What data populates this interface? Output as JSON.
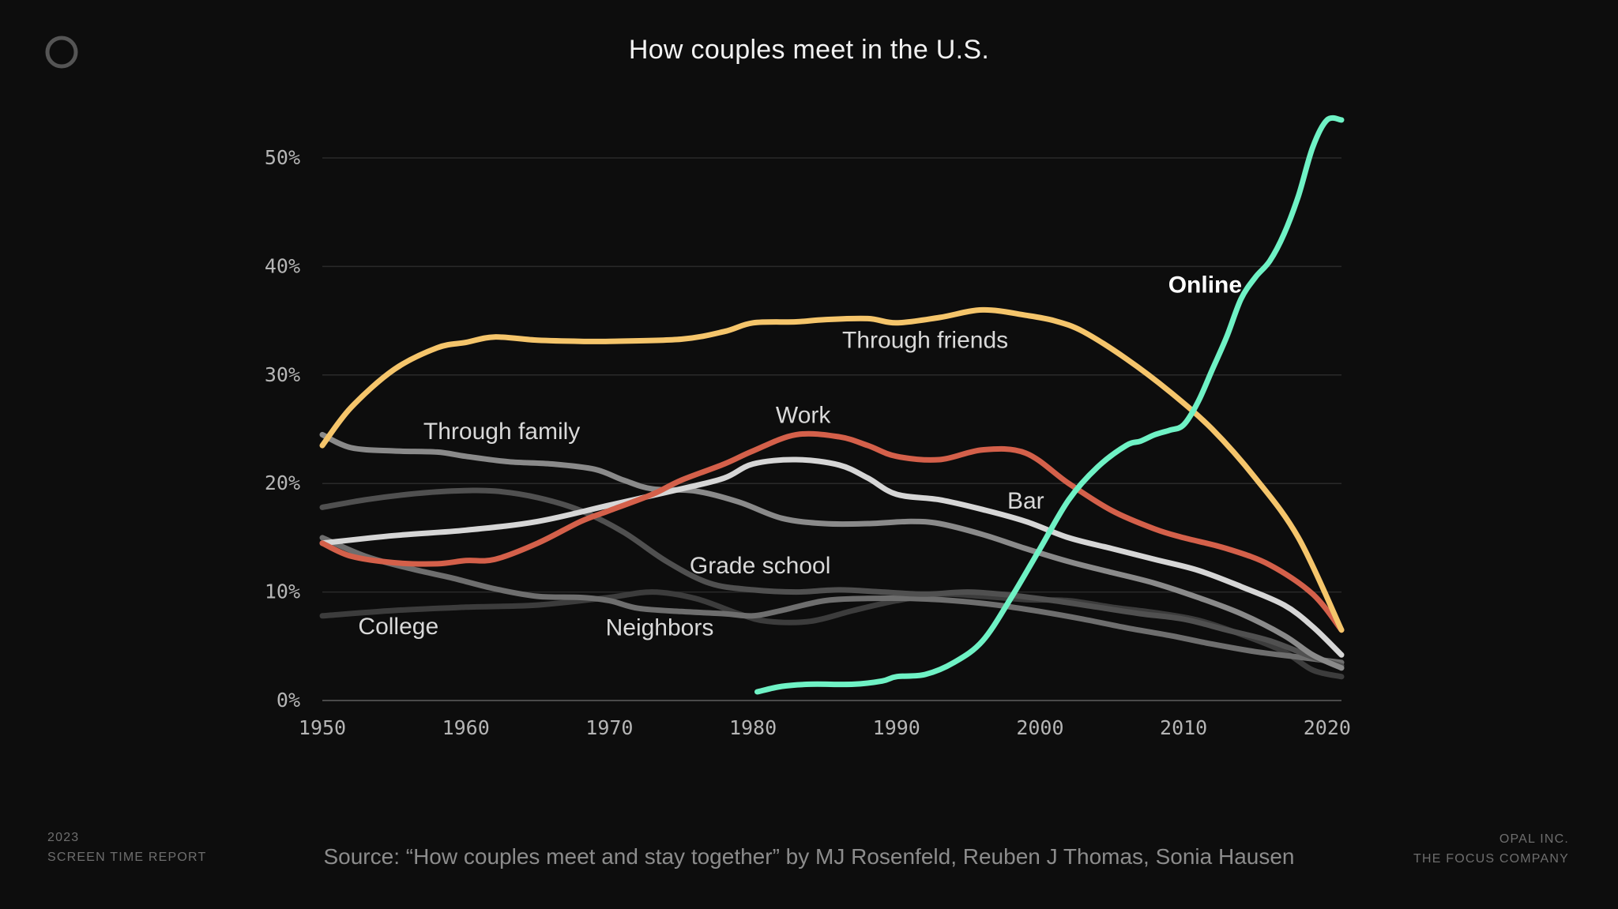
{
  "title": "How couples meet in the U.S.",
  "source": "Source: “How couples meet and stay together” by MJ Rosenfeld, Reuben J Thomas, Sonia Hausen",
  "footer_left": {
    "line1": "2023",
    "line2": "SCREEN TIME REPORT"
  },
  "footer_right": {
    "line1": "OPAL INC.",
    "line2": "THE FOCUS COMPANY"
  },
  "logo": {
    "icon": "circle-logo-icon"
  },
  "chart_data": {
    "type": "line",
    "title": "How couples meet in the U.S.",
    "xlim": [
      1950,
      2021
    ],
    "ylim": [
      0,
      50
    ],
    "x_ticks": [
      1950,
      1960,
      1970,
      1980,
      1990,
      2000,
      2010,
      2020
    ],
    "y_ticks": [
      0,
      10,
      20,
      30,
      40,
      50
    ],
    "y_tick_labels": [
      "0%",
      "10%",
      "20%",
      "30%",
      "40%",
      "50%"
    ],
    "grid": "horizontal",
    "legend": "none (direct labels)",
    "series": [
      {
        "name": "Through friends",
        "color": "#f5c56b",
        "width": 7,
        "label_pos": [
          1992,
          32.5
        ],
        "x": [
          1950,
          1952,
          1955,
          1958,
          1960,
          1962,
          1965,
          1968,
          1970,
          1975,
          1978,
          1980,
          1983,
          1985,
          1988,
          1990,
          1993,
          1996,
          1999,
          2001,
          2003,
          2006,
          2009,
          2012,
          2015,
          2018,
          2021
        ],
        "y": [
          23.5,
          27,
          30.5,
          32.5,
          33,
          33.5,
          33.2,
          33.1,
          33.1,
          33.3,
          34,
          34.8,
          34.9,
          35.1,
          35.2,
          34.8,
          35.3,
          36,
          35.5,
          35,
          34,
          31.5,
          28.5,
          25,
          20.5,
          15,
          6.5
        ]
      },
      {
        "name": "Work",
        "color": "#d4604a",
        "width": 7,
        "label_pos": [
          1983.5,
          25.6
        ],
        "x": [
          1950,
          1952,
          1955,
          1958,
          1960,
          1962,
          1965,
          1968,
          1970,
          1973,
          1975,
          1978,
          1980,
          1983,
          1986,
          1988,
          1990,
          1993,
          1996,
          1999,
          2002,
          2005,
          2008,
          2010,
          2013,
          2016,
          2019,
          2021
        ],
        "y": [
          14.5,
          13.3,
          12.7,
          12.6,
          12.9,
          13,
          14.5,
          16.5,
          17.5,
          19,
          20.3,
          21.8,
          23,
          24.5,
          24.3,
          23.5,
          22.5,
          22.2,
          23.1,
          22.8,
          20,
          17.5,
          15.8,
          15,
          14,
          12.5,
          9.8,
          6.5
        ]
      },
      {
        "name": "Bar",
        "color": "#d6d6d6",
        "width": 7,
        "label_pos": [
          1999,
          17.7
        ],
        "x": [
          1950,
          1955,
          1960,
          1965,
          1970,
          1975,
          1978,
          1980,
          1983,
          1986,
          1988,
          1990,
          1993,
          1996,
          1999,
          2002,
          2005,
          2008,
          2011,
          2014,
          2017,
          2019,
          2021
        ],
        "y": [
          14.5,
          15.2,
          15.7,
          16.5,
          18,
          19.5,
          20.5,
          21.8,
          22.2,
          21.7,
          20.5,
          19,
          18.5,
          17.6,
          16.5,
          15,
          14,
          13,
          12,
          10.5,
          8.8,
          6.8,
          4.2
        ]
      },
      {
        "name": "Through family",
        "color": "#8a8a8a",
        "width": 7,
        "label_pos": [
          1962.5,
          24.1
        ],
        "x": [
          1950,
          1952,
          1955,
          1958,
          1960,
          1963,
          1966,
          1969,
          1971,
          1973,
          1976,
          1979,
          1982,
          1985,
          1988,
          1991,
          1993,
          1996,
          1999,
          2002,
          2005,
          2008,
          2011,
          2014,
          2017,
          2019,
          2021
        ],
        "y": [
          24.5,
          23.3,
          23,
          22.9,
          22.5,
          22,
          21.8,
          21.3,
          20.3,
          19.5,
          19.3,
          18.3,
          16.8,
          16.3,
          16.3,
          16.5,
          16.3,
          15.3,
          14,
          12.8,
          11.8,
          10.8,
          9.5,
          8,
          6,
          4.2,
          3
        ]
      },
      {
        "name": "Grade school",
        "color": "#505050",
        "width": 7,
        "label_pos": [
          1980.5,
          11.7
        ],
        "x": [
          1950,
          1953,
          1956,
          1959,
          1962,
          1965,
          1968,
          1971,
          1974,
          1977,
          1980,
          1983,
          1986,
          1989,
          1992,
          1995,
          1998,
          2001,
          2004,
          2007,
          2010,
          2013,
          2016,
          2019,
          2021
        ],
        "y": [
          17.8,
          18.5,
          19,
          19.3,
          19.3,
          18.7,
          17.5,
          15.5,
          12.8,
          10.8,
          10.2,
          10,
          10.2,
          10,
          9.8,
          10,
          9.7,
          9.2,
          8.6,
          8,
          7.5,
          6.5,
          5.5,
          4,
          3.2
        ]
      },
      {
        "name": "Neighbors",
        "color": "#6e6e6e",
        "width": 7,
        "label_pos": [
          1973.5,
          6.0
        ],
        "x": [
          1950,
          1953,
          1956,
          1959,
          1962,
          1965,
          1968,
          1970,
          1972,
          1975,
          1978,
          1980,
          1982,
          1985,
          1988,
          1991,
          1994,
          1997,
          2000,
          2003,
          2006,
          2009,
          2012,
          2015,
          2018,
          2021
        ],
        "y": [
          15,
          13.3,
          12.2,
          11.3,
          10.3,
          9.6,
          9.5,
          9.2,
          8.5,
          8.2,
          8,
          7.8,
          8.3,
          9.2,
          9.4,
          9.4,
          9.2,
          8.8,
          8.2,
          7.5,
          6.7,
          6,
          5.2,
          4.5,
          4,
          3.5
        ]
      },
      {
        "name": "College",
        "color": "#3c3c3c",
        "width": 7,
        "label_pos": [
          1955.3,
          6.1
        ],
        "x": [
          1950,
          1955,
          1960,
          1965,
          1970,
          1973,
          1976,
          1979,
          1981,
          1984,
          1987,
          1990,
          1993,
          1996,
          1999,
          2002,
          2005,
          2008,
          2011,
          2014,
          2017,
          2019,
          2021
        ],
        "y": [
          7.8,
          8.3,
          8.6,
          8.8,
          9.5,
          10,
          9.4,
          8,
          7.3,
          7.3,
          8.3,
          9.2,
          9.8,
          9.6,
          9.3,
          9.2,
          8.6,
          8.1,
          7.4,
          6.1,
          4.5,
          2.8,
          2.2
        ]
      },
      {
        "name": "Online",
        "color": "#6ff2c5",
        "width": 7,
        "label_pos": [
          1983.0,
          6.0
        ],
        "label_bold": true,
        "x": [
          1980.3,
          1982,
          1984,
          1987,
          1989,
          1990,
          1992,
          1994,
          1996,
          1998,
          2000,
          2002,
          2004,
          2006,
          2007,
          2008,
          2009,
          2010,
          2011,
          2012,
          2013,
          2014,
          2015,
          2016,
          2017,
          2018,
          2019,
          2020,
          2021
        ],
        "y": [
          0.8,
          1.3,
          1.5,
          1.5,
          1.8,
          2.2,
          2.4,
          3.5,
          5.5,
          9.5,
          14,
          18.5,
          21.5,
          23.5,
          23.9,
          24.5,
          24.9,
          25.4,
          27.5,
          30.5,
          33.5,
          37,
          39,
          40.5,
          43,
          46.5,
          51,
          53.5,
          53.5
        ]
      }
    ]
  }
}
